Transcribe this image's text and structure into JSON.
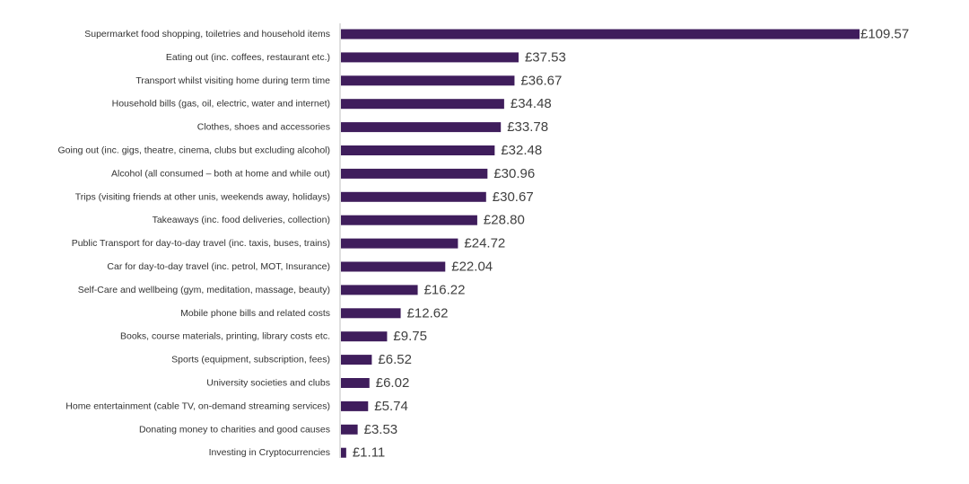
{
  "chart_data": {
    "type": "bar",
    "orientation": "horizontal",
    "categories": [
      "Supermarket food shopping, toiletries and household items",
      "Eating out (inc. coffees, restaurant etc.)",
      "Transport whilst visiting home during term time",
      "Household bills (gas, oil, electric, water and internet)",
      "Clothes, shoes and accessories",
      "Going out (inc. gigs, theatre, cinema, clubs but excluding alcohol)",
      "Alcohol (all consumed – both at home and while out)",
      "Trips (visiting friends at other unis, weekends away, holidays)",
      "Takeaways (inc. food deliveries, collection)",
      "Public Transport for day-to-day travel (inc. taxis, buses, trains)",
      "Car for day-to-day travel (inc. petrol, MOT, Insurance)",
      "Self-Care and wellbeing (gym, meditation, massage, beauty)",
      "Mobile phone bills and related costs",
      "Books, course materials, printing, library costs etc.",
      "Sports (equipment, subscription, fees)",
      "University societies and clubs",
      "Home entertainment (cable TV, on-demand streaming services)",
      "Donating money to charities and good causes",
      "Investing in Cryptocurrencies"
    ],
    "values": [
      109.57,
      37.53,
      36.67,
      34.48,
      33.78,
      32.48,
      30.96,
      30.67,
      28.8,
      24.72,
      22.04,
      16.22,
      12.62,
      9.75,
      6.52,
      6.02,
      5.74,
      3.53,
      1.11
    ],
    "value_labels": [
      "£109.57",
      "£37.53",
      "£36.67",
      "£34.48",
      "£33.78",
      "£32.48",
      "£30.96",
      "£30.67",
      "£28.80",
      "£24.72",
      "£22.04",
      "£16.22",
      "£12.62",
      "£9.75",
      "£6.52",
      "£6.02",
      "£5.74",
      "£3.53",
      "£1.11"
    ],
    "title": "",
    "xlabel": "",
    "ylabel": "",
    "xlim": [
      0,
      109.57
    ],
    "grid": false,
    "legend": "none",
    "bar_color": "#3f1d5c",
    "axis_color": "#bfbfbf"
  }
}
